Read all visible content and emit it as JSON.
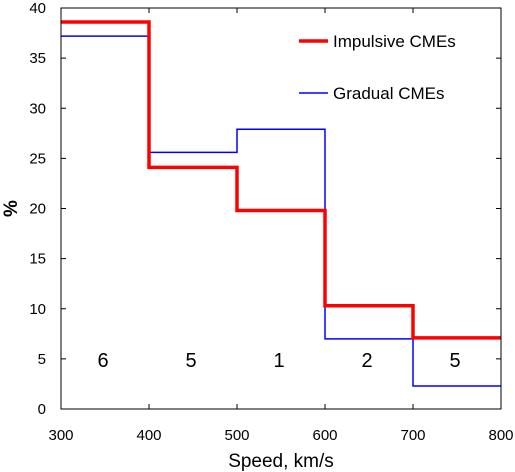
{
  "chart_data": {
    "type": "line",
    "step": true,
    "title": "",
    "xlabel": "Speed, km/s",
    "ylabel": "%",
    "xlim": [
      300,
      800
    ],
    "ylim": [
      0,
      40
    ],
    "xticks": [
      "300",
      "400",
      "500",
      "600",
      "700",
      "800"
    ],
    "yticks": [
      "0",
      "5",
      "10",
      "15",
      "20",
      "25",
      "30",
      "35",
      "40"
    ],
    "bin_edges": [
      300,
      400,
      500,
      600,
      700,
      800
    ],
    "series": [
      {
        "name": "Impulsive CMEs",
        "color": "#ff0000",
        "values": [
          38.6,
          24.1,
          19.8,
          10.3,
          7.1
        ]
      },
      {
        "name": "Gradual CMEs",
        "color": "#0000ff",
        "values": [
          37.2,
          25.6,
          27.9,
          7.0,
          2.3
        ]
      }
    ],
    "bin_labels": [
      "6",
      "5",
      "1",
      "2",
      "5"
    ],
    "legend_position": "top-right",
    "grid": false
  }
}
